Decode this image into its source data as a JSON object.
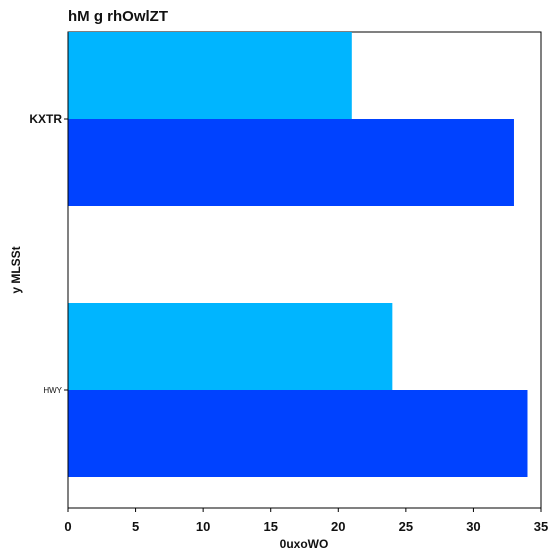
{
  "chart_data": {
    "type": "bar",
    "orientation": "horizontal",
    "title": "hM g rhOwlZT",
    "xlabel": "0uxoWO",
    "ylabel": "y MLSSt",
    "categories": [
      "KXTR",
      "HWY"
    ],
    "series": [
      {
        "color": "#00b5ff",
        "values": [
          21,
          24
        ]
      },
      {
        "color": "#0042ff",
        "values": [
          33,
          34
        ]
      }
    ],
    "xlim": [
      0,
      35
    ],
    "xticks": [
      0,
      5,
      10,
      15,
      20,
      25,
      30,
      35
    ],
    "grid": false,
    "legend": "none"
  }
}
